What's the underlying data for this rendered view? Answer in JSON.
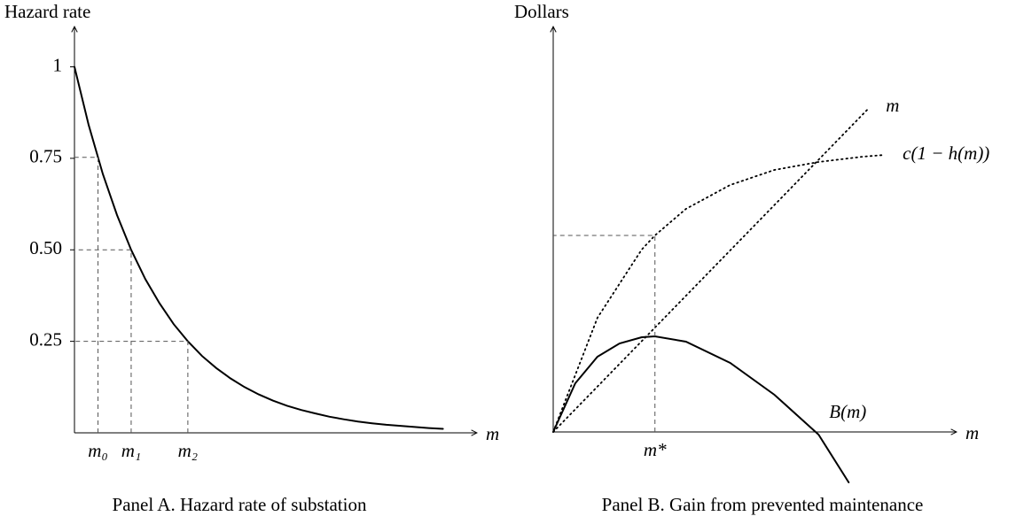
{
  "chart_data": [
    {
      "type": "line",
      "y_label": "Hazard rate",
      "x_label": "m",
      "caption": "Panel A. Hazard rate of substation",
      "x": [
        0,
        0.25,
        0.5,
        0.75,
        1,
        1.25,
        1.5,
        1.75,
        2,
        2.25,
        2.5,
        2.75,
        3,
        3.25,
        3.5,
        3.75,
        4,
        4.25,
        4.5,
        4.75,
        5,
        5.25,
        5.5,
        5.75,
        6,
        6.25,
        6.5
      ],
      "series": [
        {
          "color": "#000000",
          "style": "solid",
          "values": [
            1,
            0.841,
            0.707,
            0.595,
            0.5,
            0.42,
            0.354,
            0.297,
            0.25,
            0.21,
            0.177,
            0.149,
            0.125,
            0.105,
            0.088,
            0.074,
            0.0625,
            0.053,
            0.044,
            0.037,
            0.031,
            0.026,
            0.022,
            0.019,
            0.016,
            0.013,
            0.011
          ]
        }
      ],
      "xlim": [
        0,
        7.1
      ],
      "ylim": [
        0,
        1.11
      ],
      "xticks": [
        {
          "value": 0.415,
          "label": "m₀"
        },
        {
          "value": 1,
          "label": "m₁"
        },
        {
          "value": 2,
          "label": "m₂"
        }
      ],
      "yticks": [
        1,
        0.75,
        {
          "value": 0.5,
          "label": "0.50"
        },
        0.25
      ]
    },
    {
      "type": "line",
      "y_label": "Dollars",
      "x_label": "m",
      "caption": "Panel B. Gain from prevented maintenance",
      "series": [
        {
          "name": "m",
          "color": "#000000",
          "style": "dotted",
          "x": [
            0,
            3.56
          ],
          "values": [
            0,
            3.65
          ]
        },
        {
          "name": "c(1 − h(m))",
          "color": "#000000",
          "style": "dotted",
          "x": [
            0,
            0.5,
            1,
            1.15,
            1.5,
            2,
            2.5,
            3,
            3.5,
            3.75
          ],
          "values": [
            0,
            1.29,
            2.06,
            2.22,
            2.52,
            2.79,
            2.96,
            3.05,
            3.11,
            3.13
          ]
        },
        {
          "name": "B(m)",
          "color": "#000000",
          "style": "solid",
          "x": [
            0,
            0.25,
            0.5,
            0.75,
            1,
            1.15,
            1.5,
            2,
            2.5,
            3,
            3.34
          ],
          "values": [
            0,
            0.55,
            0.85,
            1.0,
            1.07,
            1.08,
            1.02,
            0.78,
            0.42,
            -0.03,
            -0.57
          ]
        }
      ],
      "xlim": [
        0,
        4.56
      ],
      "ylim": [
        -0.6,
        4.58
      ],
      "xticks": [
        {
          "value": 1.15,
          "label": "m*"
        }
      ]
    }
  ]
}
